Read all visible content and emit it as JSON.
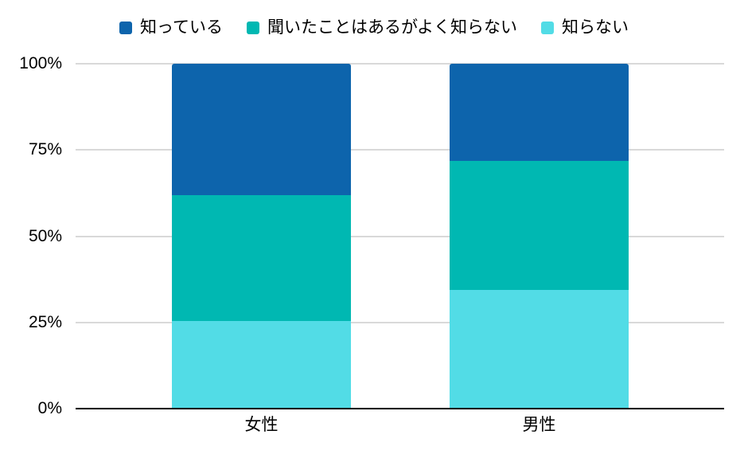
{
  "chart_data": {
    "type": "bar",
    "subtype": "stacked-100-percent",
    "orientation": "vertical-columns",
    "title": "",
    "xlabel": "",
    "ylabel": "",
    "categories": [
      "女性",
      "男性"
    ],
    "series": [
      {
        "name": "知っている",
        "color": "#0d64ac",
        "values": [
          38.1,
          28.2
        ]
      },
      {
        "name": "聞いたことはあるがよく知らない",
        "color": "#00b8b2",
        "values": [
          36.4,
          37.3
        ]
      },
      {
        "name": "知らない",
        "color": "#52dce6",
        "values": [
          25.5,
          34.5
        ]
      }
    ],
    "stack_order_bottom_to_top": [
      "知らない",
      "聞いたことはあるがよく知らない",
      "知っている"
    ],
    "ylim": [
      0,
      100
    ],
    "y_ticks": [
      {
        "value": 0,
        "label": "0%"
      },
      {
        "value": 25,
        "label": "25%"
      },
      {
        "value": 50,
        "label": "50%"
      },
      {
        "value": 75,
        "label": "75%"
      },
      {
        "value": 100,
        "label": "100%"
      }
    ],
    "legend_position": "top",
    "grid": true,
    "gridline_color": "#d9d9d9",
    "axis_line_color": "#000000",
    "text_color": "#000000",
    "background_color": "#ffffff"
  }
}
